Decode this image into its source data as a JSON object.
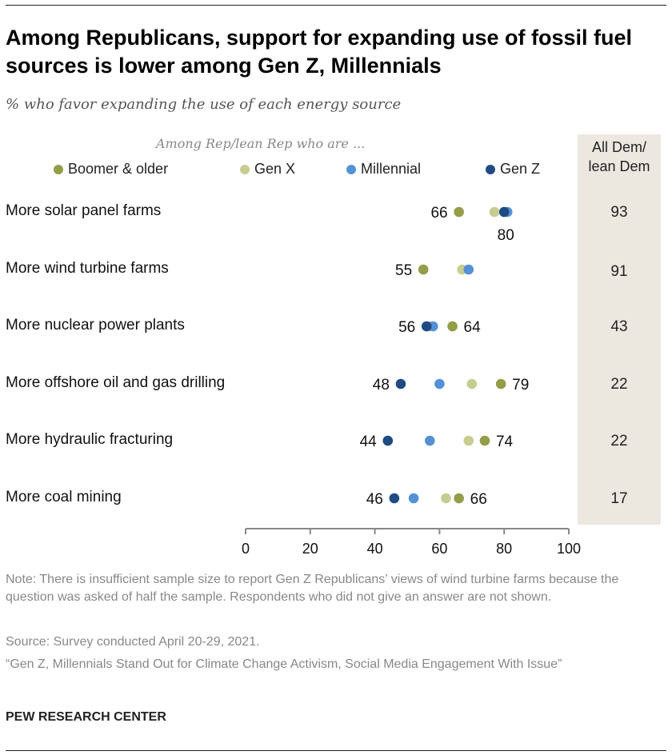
{
  "title": "Among Republicans, support for expanding use of fossil fuel sources is lower among Gen Z, Millennials",
  "subtitle": "% who favor expanding the use of each energy source",
  "chart_data": {
    "type": "scatter",
    "group_header": "Among Rep/lean Rep who are ...",
    "dem_header": "All Dem/ lean Dem",
    "categories": [
      "More solar panel farms",
      "More wind turbine farms",
      "More nuclear power plants",
      "More offshore oil and gas drilling",
      "More hydraulic fracturing",
      "More coal mining"
    ],
    "series": [
      {
        "name": "Boomer & older",
        "color": "#949d48",
        "values": [
          66,
          55,
          64,
          79,
          74,
          66
        ]
      },
      {
        "name": "Gen X",
        "color": "#c7cd91",
        "values": [
          77,
          67,
          57,
          70,
          69,
          62
        ]
      },
      {
        "name": "Millennial",
        "color": "#5691d6",
        "values": [
          81,
          69,
          58,
          60,
          57,
          52
        ]
      },
      {
        "name": "Gen Z",
        "color": "#1f4a82",
        "values": [
          80,
          null,
          56,
          48,
          44,
          46
        ]
      }
    ],
    "data_labels": [
      {
        "left": "66",
        "right": "80",
        "right_below": true
      },
      {
        "left": "55",
        "right": ""
      },
      {
        "left": "56",
        "right": "64"
      },
      {
        "left": "48",
        "right": "79"
      },
      {
        "left": "44",
        "right": "74"
      },
      {
        "left": "46",
        "right": "66"
      }
    ],
    "dem_values": [
      "93",
      "91",
      "43",
      "22",
      "22",
      "17"
    ],
    "xlim": [
      0,
      100
    ],
    "xticks": [
      "0",
      "20",
      "40",
      "60",
      "80",
      "100"
    ],
    "legend": "top"
  },
  "notes": {
    "note": "Note: There is insufficient sample size to report Gen Z Republicans’ views of wind turbine farms because the question was asked of half the sample. Respondents who did not give an answer are not shown.",
    "source": "Source: Survey conducted April 20-29, 2021.",
    "report": "“Gen Z, Millennials Stand Out for Climate Change Activism, Social Media Engagement With Issue”"
  },
  "brand": "PEW RESEARCH CENTER"
}
